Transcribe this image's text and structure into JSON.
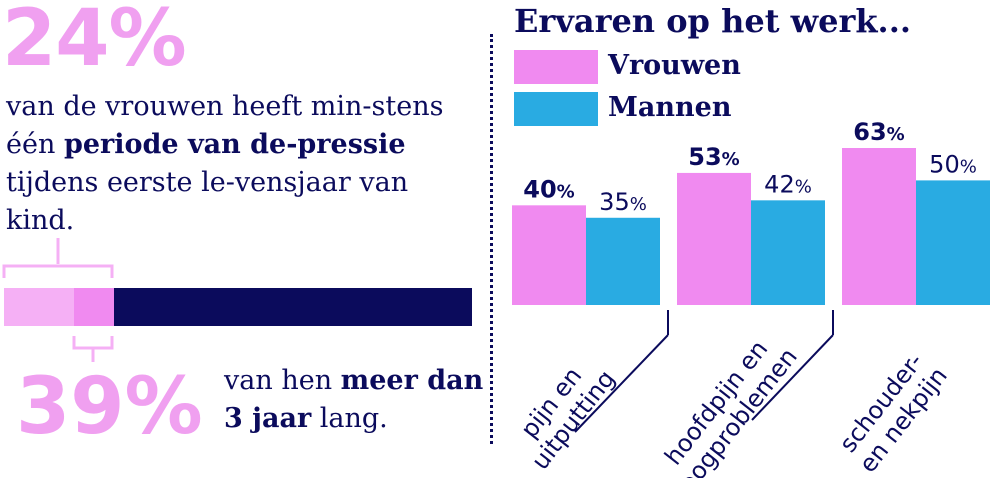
{
  "left": {
    "headline_pct": "24%",
    "intro_part1": "van de vrouwen heeft min-stens één ",
    "intro_bold": "periode van de-pressie",
    "intro_part2": " tijdens eerste le-vensjaar van kind.",
    "bar": {
      "share_fraction": 0.39
    },
    "sub_pct": "39%",
    "sub_part1": "van hen ",
    "sub_bold": "meer dan 3 jaar",
    "sub_part2": " lang."
  },
  "colors": {
    "pink": "#f08af0",
    "light_pink": "#f5b0f5",
    "blue": "#29abe2",
    "navy": "#0b0b5c"
  },
  "chart_data": {
    "type": "bar",
    "title": "Ervaren op het werk...",
    "categories": [
      "pijn en uitputting",
      "hoofdpijn en oogproblemen",
      "schouder- en nekpijn"
    ],
    "category_lines": [
      [
        "pijn en",
        "uitputting"
      ],
      [
        "hoofdpijn en",
        "oogproblemen"
      ],
      [
        "schouder-",
        "en nekpijn"
      ]
    ],
    "series": [
      {
        "name": "Vrouwen",
        "values": [
          40,
          53,
          63
        ],
        "labels": [
          "40%",
          "53%",
          "63%"
        ],
        "color": "#f08af0"
      },
      {
        "name": "Mannen",
        "values": [
          35,
          42,
          50
        ],
        "labels": [
          "35%",
          "42%",
          "50%"
        ],
        "color": "#29abe2"
      }
    ],
    "ylim": [
      0,
      100
    ],
    "legend": "top-left",
    "grid": false
  }
}
